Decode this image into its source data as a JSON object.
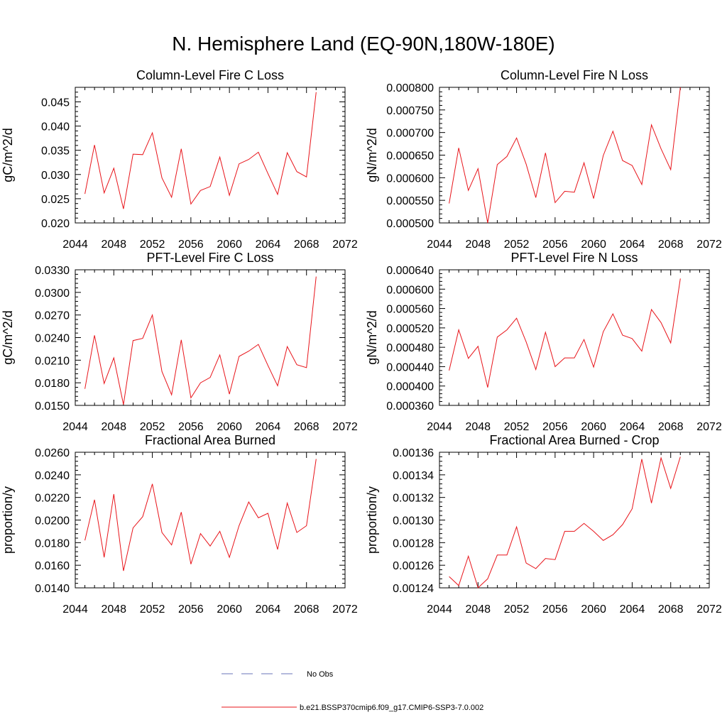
{
  "page": {
    "title": "N. Hemisphere Land (EQ-90N,180W-180E)"
  },
  "colors": {
    "series": "#e8141a",
    "obs": "#6a74b8",
    "axis": "#000000"
  },
  "legend": {
    "obs_label": "No Obs",
    "model_label": "b.e21.BSSP370cmip6.f09_g17.CMIP6-SSP3-7.0.002"
  },
  "chart_data": [
    {
      "type": "line",
      "title": "Column-Level Fire C Loss",
      "ylabel": "gC/m^2/d",
      "xlim": [
        2044,
        2072
      ],
      "ylim": [
        0.02,
        0.048
      ],
      "xticks": [
        2044,
        2048,
        2052,
        2056,
        2060,
        2064,
        2068,
        2072
      ],
      "yticks": [
        "0.020",
        "0.025",
        "0.030",
        "0.035",
        "0.040",
        "0.045"
      ],
      "x": [
        2045,
        2046,
        2047,
        2048,
        2049,
        2050,
        2051,
        2052,
        2053,
        2054,
        2055,
        2056,
        2057,
        2058,
        2059,
        2060,
        2061,
        2062,
        2063,
        2064,
        2065,
        2066,
        2067,
        2068,
        2069
      ],
      "y": [
        0.026,
        0.0361,
        0.0262,
        0.0313,
        0.0229,
        0.0342,
        0.0341,
        0.0386,
        0.0293,
        0.0253,
        0.0353,
        0.0239,
        0.0267,
        0.0275,
        0.0336,
        0.0257,
        0.0322,
        0.0331,
        0.0346,
        0.0302,
        0.0259,
        0.0345,
        0.0306,
        0.0295,
        0.047
      ]
    },
    {
      "type": "line",
      "title": "Column-Level Fire N Loss",
      "ylabel": "gN/m^2/d",
      "xlim": [
        2044,
        2072
      ],
      "ylim": [
        0.0005,
        0.0008
      ],
      "xticks": [
        2044,
        2048,
        2052,
        2056,
        2060,
        2064,
        2068,
        2072
      ],
      "yticks": [
        "0.000500",
        "0.000550",
        "0.000600",
        "0.000650",
        "0.000700",
        "0.000750",
        "0.000800"
      ],
      "x": [
        2045,
        2046,
        2047,
        2048,
        2049,
        2050,
        2051,
        2052,
        2053,
        2054,
        2055,
        2056,
        2057,
        2058,
        2059,
        2060,
        2061,
        2062,
        2063,
        2064,
        2065,
        2066,
        2067,
        2068,
        2069
      ],
      "y": [
        0.000543,
        0.000666,
        0.000572,
        0.00062,
        0.0005,
        0.000629,
        0.000647,
        0.000688,
        0.00063,
        0.000556,
        0.000655,
        0.000545,
        0.00057,
        0.000568,
        0.000633,
        0.000554,
        0.000649,
        0.000703,
        0.000638,
        0.000627,
        0.000585,
        0.000717,
        0.000664,
        0.000618,
        0.0008
      ]
    },
    {
      "type": "line",
      "title": "PFT-Level Fire C Loss",
      "ylabel": "gC/m^2/d",
      "xlim": [
        2044,
        2072
      ],
      "ylim": [
        0.015,
        0.033
      ],
      "xticks": [
        2044,
        2048,
        2052,
        2056,
        2060,
        2064,
        2068,
        2072
      ],
      "yticks": [
        "0.0150",
        "0.0180",
        "0.0210",
        "0.0240",
        "0.0270",
        "0.0300",
        "0.0330"
      ],
      "x": [
        2045,
        2046,
        2047,
        2048,
        2049,
        2050,
        2051,
        2052,
        2053,
        2054,
        2055,
        2056,
        2057,
        2058,
        2059,
        2060,
        2061,
        2062,
        2063,
        2064,
        2065,
        2066,
        2067,
        2068,
        2069
      ],
      "y": [
        0.0172,
        0.0243,
        0.0179,
        0.0213,
        0.0151,
        0.0236,
        0.0239,
        0.027,
        0.0195,
        0.0164,
        0.0237,
        0.016,
        0.018,
        0.0187,
        0.0217,
        0.0165,
        0.0215,
        0.0222,
        0.0231,
        0.0203,
        0.0176,
        0.0228,
        0.0204,
        0.02,
        0.0321
      ]
    },
    {
      "type": "line",
      "title": "PFT-Level Fire N Loss",
      "ylabel": "gN/m^2/d",
      "xlim": [
        2044,
        2072
      ],
      "ylim": [
        0.00036,
        0.00064
      ],
      "xticks": [
        2044,
        2048,
        2052,
        2056,
        2060,
        2064,
        2068,
        2072
      ],
      "yticks": [
        "0.000360",
        "0.000400",
        "0.000440",
        "0.000480",
        "0.000520",
        "0.000560",
        "0.000600",
        "0.000640"
      ],
      "x": [
        2045,
        2046,
        2047,
        2048,
        2049,
        2050,
        2051,
        2052,
        2053,
        2054,
        2055,
        2056,
        2057,
        2058,
        2059,
        2060,
        2061,
        2062,
        2063,
        2064,
        2065,
        2066,
        2067,
        2068,
        2069
      ],
      "y": [
        0.000432,
        0.000516,
        0.000457,
        0.000482,
        0.000397,
        0.000501,
        0.000516,
        0.00054,
        0.000491,
        0.000434,
        0.000511,
        0.00044,
        0.000458,
        0.000458,
        0.000496,
        0.000439,
        0.000512,
        0.000549,
        0.000505,
        0.000498,
        0.000472,
        0.000558,
        0.000531,
        0.000489,
        0.000622
      ]
    },
    {
      "type": "line",
      "title": "Fractional Area Burned",
      "ylabel": "proportion/y",
      "xlim": [
        2044,
        2072
      ],
      "ylim": [
        0.014,
        0.026
      ],
      "xticks": [
        2044,
        2048,
        2052,
        2056,
        2060,
        2064,
        2068,
        2072
      ],
      "yticks": [
        "0.0140",
        "0.0160",
        "0.0180",
        "0.0200",
        "0.0220",
        "0.0240",
        "0.0260"
      ],
      "x": [
        2045,
        2046,
        2047,
        2048,
        2049,
        2050,
        2051,
        2052,
        2053,
        2054,
        2055,
        2056,
        2057,
        2058,
        2059,
        2060,
        2061,
        2062,
        2063,
        2064,
        2065,
        2066,
        2067,
        2068,
        2069
      ],
      "y": [
        0.0182,
        0.0218,
        0.0167,
        0.0223,
        0.0155,
        0.0193,
        0.0203,
        0.0232,
        0.0189,
        0.0178,
        0.0207,
        0.0161,
        0.0188,
        0.0177,
        0.019,
        0.0167,
        0.0195,
        0.0216,
        0.0202,
        0.0206,
        0.0174,
        0.0215,
        0.0189,
        0.0195,
        0.0254
      ]
    },
    {
      "type": "line",
      "title": "Fractional Area Burned - Crop",
      "ylabel": "proportion/y",
      "xlim": [
        2044,
        2072
      ],
      "ylim": [
        0.00124,
        0.00136
      ],
      "xticks": [
        2044,
        2048,
        2052,
        2056,
        2060,
        2064,
        2068,
        2072
      ],
      "yticks": [
        "0.00124",
        "0.00126",
        "0.00128",
        "0.00130",
        "0.00132",
        "0.00134",
        "0.00136"
      ],
      "x": [
        2045,
        2046,
        2047,
        2048,
        2049,
        2050,
        2051,
        2052,
        2053,
        2054,
        2055,
        2056,
        2057,
        2058,
        2059,
        2060,
        2061,
        2062,
        2063,
        2064,
        2065,
        2066,
        2067,
        2068,
        2069
      ],
      "y": [
        0.00125,
        0.001242,
        0.001268,
        0.00124,
        0.001248,
        0.001269,
        0.001269,
        0.001294,
        0.001262,
        0.001257,
        0.001266,
        0.001265,
        0.00129,
        0.00129,
        0.001297,
        0.00129,
        0.001282,
        0.001287,
        0.001296,
        0.00131,
        0.001354,
        0.001315,
        0.001355,
        0.001328,
        0.001356
      ]
    }
  ]
}
